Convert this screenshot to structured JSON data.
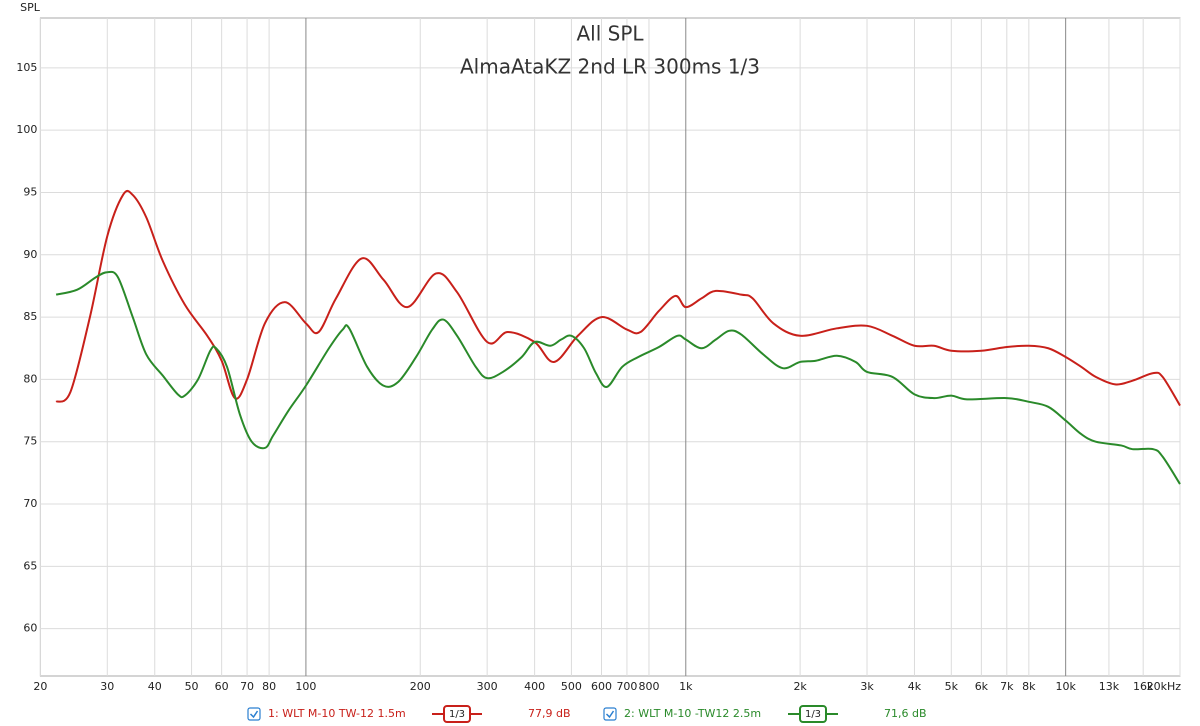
{
  "chart_data": {
    "type": "line",
    "title": "All SPL",
    "subtitle": "AlmaAtaKZ 2nd LR 300ms 1/3",
    "y_label": "SPL",
    "xscale": "log",
    "xlim": [
      20,
      20000
    ],
    "ylim": [
      56.2,
      109
    ],
    "grid": true,
    "xticks": [
      20,
      30,
      40,
      50,
      60,
      70,
      80,
      100,
      200,
      300,
      400,
      500,
      600,
      700,
      800,
      {
        "value": 1000,
        "label": "1k"
      },
      {
        "value": 2000,
        "label": "2k"
      },
      {
        "value": 3000,
        "label": "3k"
      },
      {
        "value": 4000,
        "label": "4k"
      },
      {
        "value": 5000,
        "label": "5k"
      },
      {
        "value": 6000,
        "label": "6k"
      },
      {
        "value": 7000,
        "label": "7k"
      },
      {
        "value": 8000,
        "label": "8k"
      },
      {
        "value": 10000,
        "label": "10k"
      },
      {
        "value": 13000,
        "label": "13k"
      },
      {
        "value": 16000,
        "label": "16k"
      },
      {
        "value": 20000,
        "label": "20kHz"
      }
    ],
    "yticks": [
      60,
      65,
      70,
      75,
      80,
      85,
      90,
      95,
      100,
      105
    ],
    "smoothing": "1/3",
    "series": [
      {
        "name": "1: WLT M-10 TW-12 1.5m",
        "color": "#c8201a",
        "level_label": "77,9 dB",
        "x": [
          22,
          24,
          27,
          30,
          33,
          35,
          38,
          42,
          48,
          55,
          60,
          65,
          70,
          78,
          88,
          100,
          108,
          120,
          140,
          160,
          185,
          220,
          250,
          300,
          340,
          400,
          450,
          520,
          600,
          700,
          760,
          850,
          940,
          1000,
          1100,
          1200,
          1400,
          1500,
          1700,
          2000,
          2500,
          3000,
          3500,
          4000,
          4500,
          5000,
          6000,
          7000,
          8000,
          9000,
          10000,
          11000,
          12000,
          13500,
          15000,
          17000,
          18000,
          20000
        ],
        "values": [
          78.2,
          79,
          85,
          91.5,
          94.8,
          94.8,
          93,
          89.5,
          86,
          83.5,
          81.5,
          78.5,
          80,
          84.5,
          86.2,
          84.5,
          83.8,
          86.5,
          89.7,
          88,
          85.8,
          88.5,
          87,
          83,
          83.8,
          83,
          81.4,
          83.5,
          85,
          84,
          83.8,
          85.5,
          86.7,
          85.8,
          86.5,
          87.1,
          86.8,
          86.5,
          84.5,
          83.5,
          84.1,
          84.3,
          83.5,
          82.7,
          82.7,
          82.3,
          82.3,
          82.6,
          82.7,
          82.5,
          81.8,
          81,
          80.2,
          79.6,
          79.9,
          80.5,
          80.2,
          77.9
        ]
      },
      {
        "name": "2: WLT M-10 -TW12 2.5m",
        "color": "#2a8a2a",
        "level_label": "71,6 dB",
        "x": [
          22,
          25,
          28,
          30,
          32,
          35,
          38,
          42,
          46,
          48,
          52,
          56,
          58,
          62,
          67,
          72,
          78,
          82,
          90,
          100,
          115,
          125,
          130,
          145,
          160,
          175,
          195,
          215,
          230,
          250,
          280,
          300,
          330,
          370,
          400,
          440,
          470,
          500,
          540,
          580,
          620,
          680,
          750,
          850,
          950,
          1000,
          1100,
          1200,
          1300,
          1400,
          1600,
          1800,
          2000,
          2200,
          2500,
          2800,
          3000,
          3500,
          4000,
          4500,
          5000,
          5500,
          7000,
          8000,
          9000,
          10000,
          11000,
          12000,
          14000,
          15000,
          17000,
          18000,
          20000
        ],
        "values": [
          86.8,
          87.2,
          88.2,
          88.6,
          88.2,
          85,
          82,
          80.3,
          78.8,
          78.7,
          80,
          82.3,
          82.5,
          81,
          77.2,
          75,
          74.5,
          75.5,
          77.5,
          79.5,
          82.5,
          84,
          84.1,
          81,
          79.5,
          79.8,
          81.8,
          84,
          84.8,
          83.5,
          81,
          80.1,
          80.6,
          81.8,
          83,
          82.7,
          83.2,
          83.5,
          82.5,
          80.5,
          79.4,
          81,
          81.8,
          82.6,
          83.5,
          83.2,
          82.5,
          83.2,
          83.9,
          83.6,
          82,
          80.9,
          81.4,
          81.5,
          81.9,
          81.4,
          80.6,
          80.2,
          78.8,
          78.5,
          78.7,
          78.4,
          78.5,
          78.2,
          77.8,
          76.7,
          75.6,
          75,
          74.7,
          74.4,
          74.4,
          73.8,
          71.6
        ]
      }
    ]
  }
}
